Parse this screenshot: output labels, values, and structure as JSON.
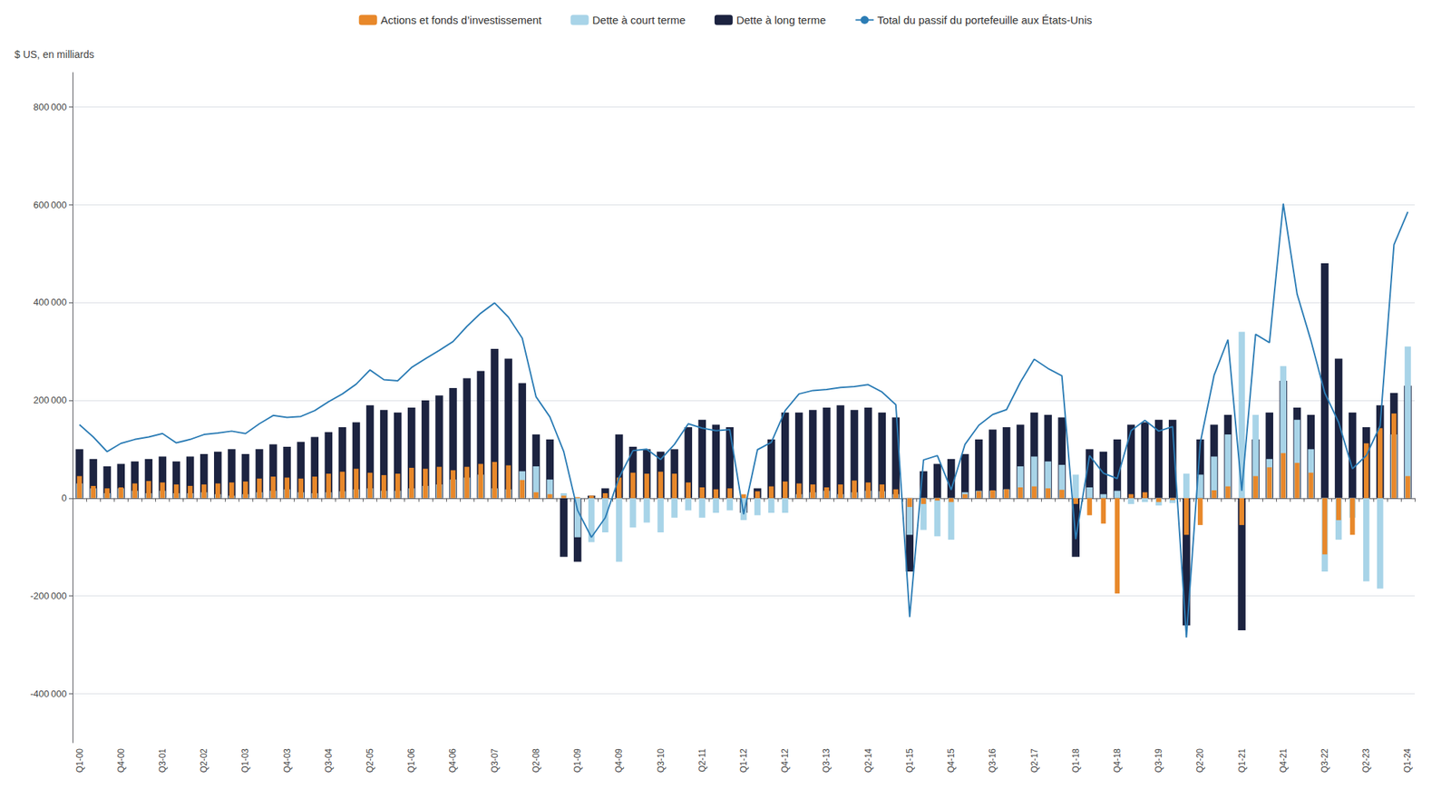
{
  "chart_data": {
    "type": "bar",
    "categories": [
      "Q1-00",
      null,
      null,
      "Q4-00",
      null,
      null,
      "Q3-01",
      null,
      null,
      "Q2-02",
      null,
      null,
      "Q1-03",
      null,
      null,
      "Q4-03",
      null,
      null,
      "Q3-04",
      null,
      null,
      "Q2-05",
      null,
      null,
      "Q1-06",
      null,
      null,
      "Q4-06",
      null,
      null,
      "Q3-07",
      null,
      null,
      "Q2-08",
      null,
      null,
      "Q1-09",
      null,
      null,
      "Q4-09",
      null,
      null,
      "Q3-10",
      null,
      null,
      "Q2-11",
      null,
      null,
      "Q1-12",
      null,
      null,
      "Q4-12",
      null,
      null,
      "Q3-13",
      null,
      null,
      "Q2-14",
      null,
      null,
      "Q1-15",
      null,
      null,
      "Q4-15",
      null,
      null,
      "Q3-16",
      null,
      null,
      "Q2-17",
      null,
      null,
      "Q1-18",
      null,
      null,
      "Q4-18",
      null,
      null,
      "Q3-19",
      null,
      null,
      "Q2-20",
      null,
      null,
      "Q1-21",
      null,
      null,
      "Q4-21",
      null,
      null,
      "Q3-22",
      null,
      null,
      "Q2-23",
      null,
      null,
      "Q1-24"
    ],
    "series": [
      {
        "name": "Dette à long terme",
        "type": "bar",
        "color": "#1C2340",
        "values": [
          100000,
          80000,
          65000,
          70000,
          75000,
          80000,
          85000,
          75000,
          85000,
          90000,
          95000,
          100000,
          90000,
          100000,
          110000,
          105000,
          115000,
          125000,
          135000,
          145000,
          155000,
          190000,
          180000,
          175000,
          185000,
          200000,
          210000,
          225000,
          245000,
          260000,
          305000,
          285000,
          235000,
          130000,
          120000,
          -120000,
          -130000,
          5000,
          20000,
          130000,
          105000,
          100000,
          95000,
          100000,
          145000,
          160000,
          150000,
          145000,
          -30000,
          20000,
          120000,
          175000,
          175000,
          180000,
          185000,
          190000,
          180000,
          185000,
          175000,
          165000,
          -150000,
          55000,
          70000,
          80000,
          90000,
          120000,
          140000,
          145000,
          150000,
          175000,
          170000,
          165000,
          -120000,
          100000,
          95000,
          120000,
          150000,
          155000,
          160000,
          160000,
          -260000,
          120000,
          150000,
          170000,
          -270000,
          120000,
          175000,
          240000,
          185000,
          170000,
          480000,
          285000,
          175000,
          145000,
          190000,
          215000,
          230000
        ]
      },
      {
        "name": "Dette à court terme",
        "type": "bar",
        "color": "#A8D4E8",
        "values": [
          30000,
          20000,
          10000,
          20000,
          15000,
          10000,
          15000,
          10000,
          10000,
          12000,
          8000,
          5000,
          8000,
          12000,
          15000,
          18000,
          12000,
          10000,
          12000,
          14000,
          18000,
          20000,
          15000,
          15000,
          20000,
          25000,
          28000,
          38000,
          42000,
          48000,
          20000,
          18000,
          55000,
          65000,
          38000,
          10000,
          -80000,
          -90000,
          -70000,
          -130000,
          -60000,
          -50000,
          -70000,
          -40000,
          -25000,
          -40000,
          -30000,
          -25000,
          -45000,
          -35000,
          -30000,
          -30000,
          8000,
          12000,
          15000,
          8000,
          12000,
          15000,
          14000,
          8000,
          -75000,
          -65000,
          -78000,
          -85000,
          12000,
          15000,
          15000,
          18000,
          65000,
          85000,
          75000,
          68000,
          48000,
          22000,
          8000,
          15000,
          -12000,
          -8000,
          -15000,
          -10000,
          50000,
          48000,
          85000,
          130000,
          340000,
          170000,
          80000,
          270000,
          160000,
          100000,
          -150000,
          -85000,
          -40000,
          -170000,
          -185000,
          130000,
          310000
        ]
      },
      {
        "name": "Actions et fonds d’investissement",
        "type": "bar",
        "color": "#E8882A",
        "values": [
          45000,
          25000,
          20000,
          22000,
          30000,
          35000,
          32000,
          28000,
          25000,
          28000,
          30000,
          32000,
          34000,
          40000,
          44000,
          42000,
          40000,
          44000,
          50000,
          54000,
          60000,
          52000,
          47000,
          50000,
          62000,
          60000,
          64000,
          57000,
          64000,
          70000,
          74000,
          67000,
          37000,
          12000,
          8000,
          5000,
          2000,
          5000,
          10000,
          42000,
          52000,
          50000,
          54000,
          50000,
          32000,
          22000,
          18000,
          20000,
          8000,
          14000,
          24000,
          34000,
          30000,
          28000,
          22000,
          28000,
          36000,
          32000,
          28000,
          18000,
          -18000,
          -12000,
          -5000,
          -8000,
          8000,
          14000,
          16000,
          18000,
          22000,
          24000,
          20000,
          17000,
          -12000,
          -35000,
          -52000,
          -195000,
          8000,
          12000,
          -8000,
          -4000,
          -75000,
          -55000,
          16000,
          24000,
          -55000,
          45000,
          63000,
          92000,
          72000,
          52000,
          -115000,
          -45000,
          -75000,
          112000,
          143000,
          173000,
          45000
        ]
      },
      {
        "name": "Total du passif du portefeuille aux États-Unis",
        "type": "line",
        "color": "#2B7CB5",
        "values": [
          150000,
          125000,
          95000,
          112000,
          120000,
          125000,
          132000,
          113000,
          120000,
          130000,
          133000,
          137000,
          132000,
          152000,
          169000,
          165000,
          167000,
          179000,
          197000,
          213000,
          233000,
          262000,
          242000,
          240000,
          267000,
          285000,
          302000,
          320000,
          351000,
          378000,
          399000,
          370000,
          327000,
          207000,
          166000,
          95000,
          -25000,
          -80000,
          -40000,
          42000,
          97000,
          100000,
          79000,
          110000,
          152000,
          143000,
          138000,
          140000,
          -33000,
          99000,
          114000,
          179000,
          213000,
          220000,
          222000,
          226000,
          228000,
          232000,
          217000,
          191000,
          -243000,
          78000,
          87000,
          17000,
          110000,
          149000,
          171000,
          181000,
          237000,
          284000,
          265000,
          250000,
          -84000,
          87000,
          51000,
          40000,
          138000,
          159000,
          137000,
          146000,
          -285000,
          113000,
          251000,
          324000,
          15000,
          335000,
          318000,
          602000,
          417000,
          322000,
          215000,
          155000,
          60000,
          87000,
          148000,
          518000,
          585000
        ]
      }
    ],
    "y_label": "$ US, en milliards",
    "ylim": [
      -500000,
      870000
    ],
    "yticks": [
      {
        "value": -400000,
        "label": "-400 000"
      },
      {
        "value": -200000,
        "label": "-200 000"
      },
      0,
      {
        "value": 200000,
        "label": "200 000"
      },
      {
        "value": 400000,
        "label": "400 000"
      },
      {
        "value": 600000,
        "label": "600 000"
      },
      {
        "value": 800000,
        "label": "800 000"
      }
    ],
    "grid": true,
    "legend": "top"
  }
}
